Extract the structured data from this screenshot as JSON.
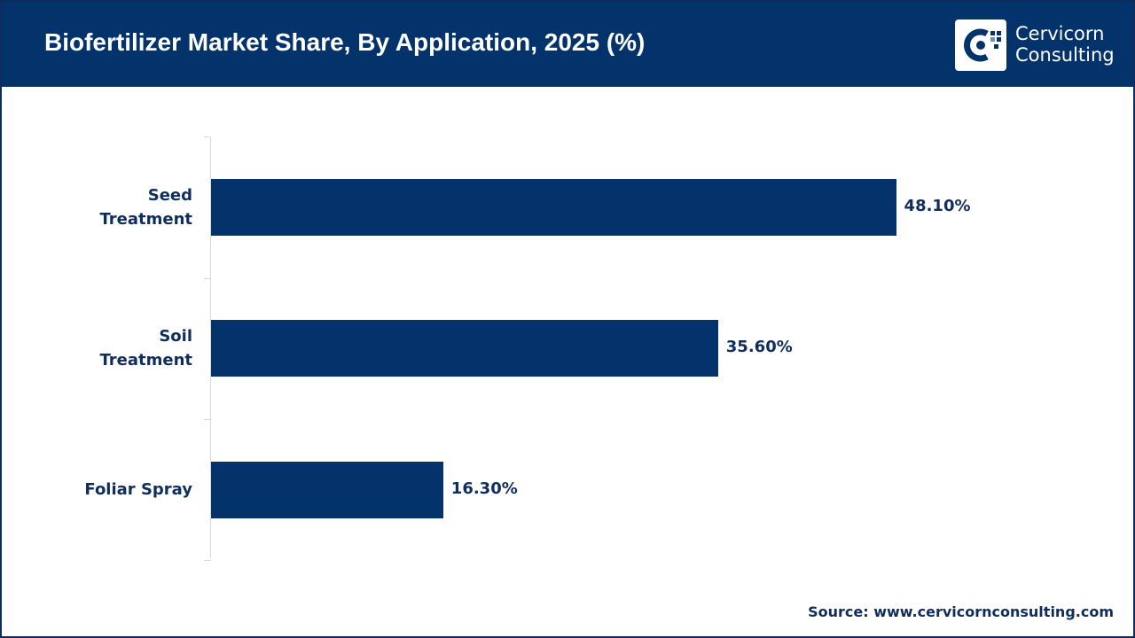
{
  "header": {
    "title": "Biofertilizer Market Share, By Application, 2025 (%)",
    "logo": {
      "line1": "Cervicorn",
      "line2": "Consulting"
    }
  },
  "chart_data": {
    "type": "bar",
    "orientation": "horizontal",
    "title": "Biofertilizer Market Share, By Application, 2025 (%)",
    "categories": [
      "Seed Treatment",
      "Soil Treatment",
      "Foliar Spray"
    ],
    "values": [
      48.1,
      35.6,
      16.3
    ],
    "value_labels": [
      "48.10%",
      "35.60%",
      "16.30%"
    ],
    "unit": "%",
    "xlim": [
      0,
      65
    ],
    "grid": false,
    "legend": "none",
    "bar_color": "#04336b"
  },
  "footer": {
    "source": "Source: www.cervicornconsulting.com"
  },
  "colors": {
    "brand": "#04336b",
    "text": "#0f2e5c"
  }
}
